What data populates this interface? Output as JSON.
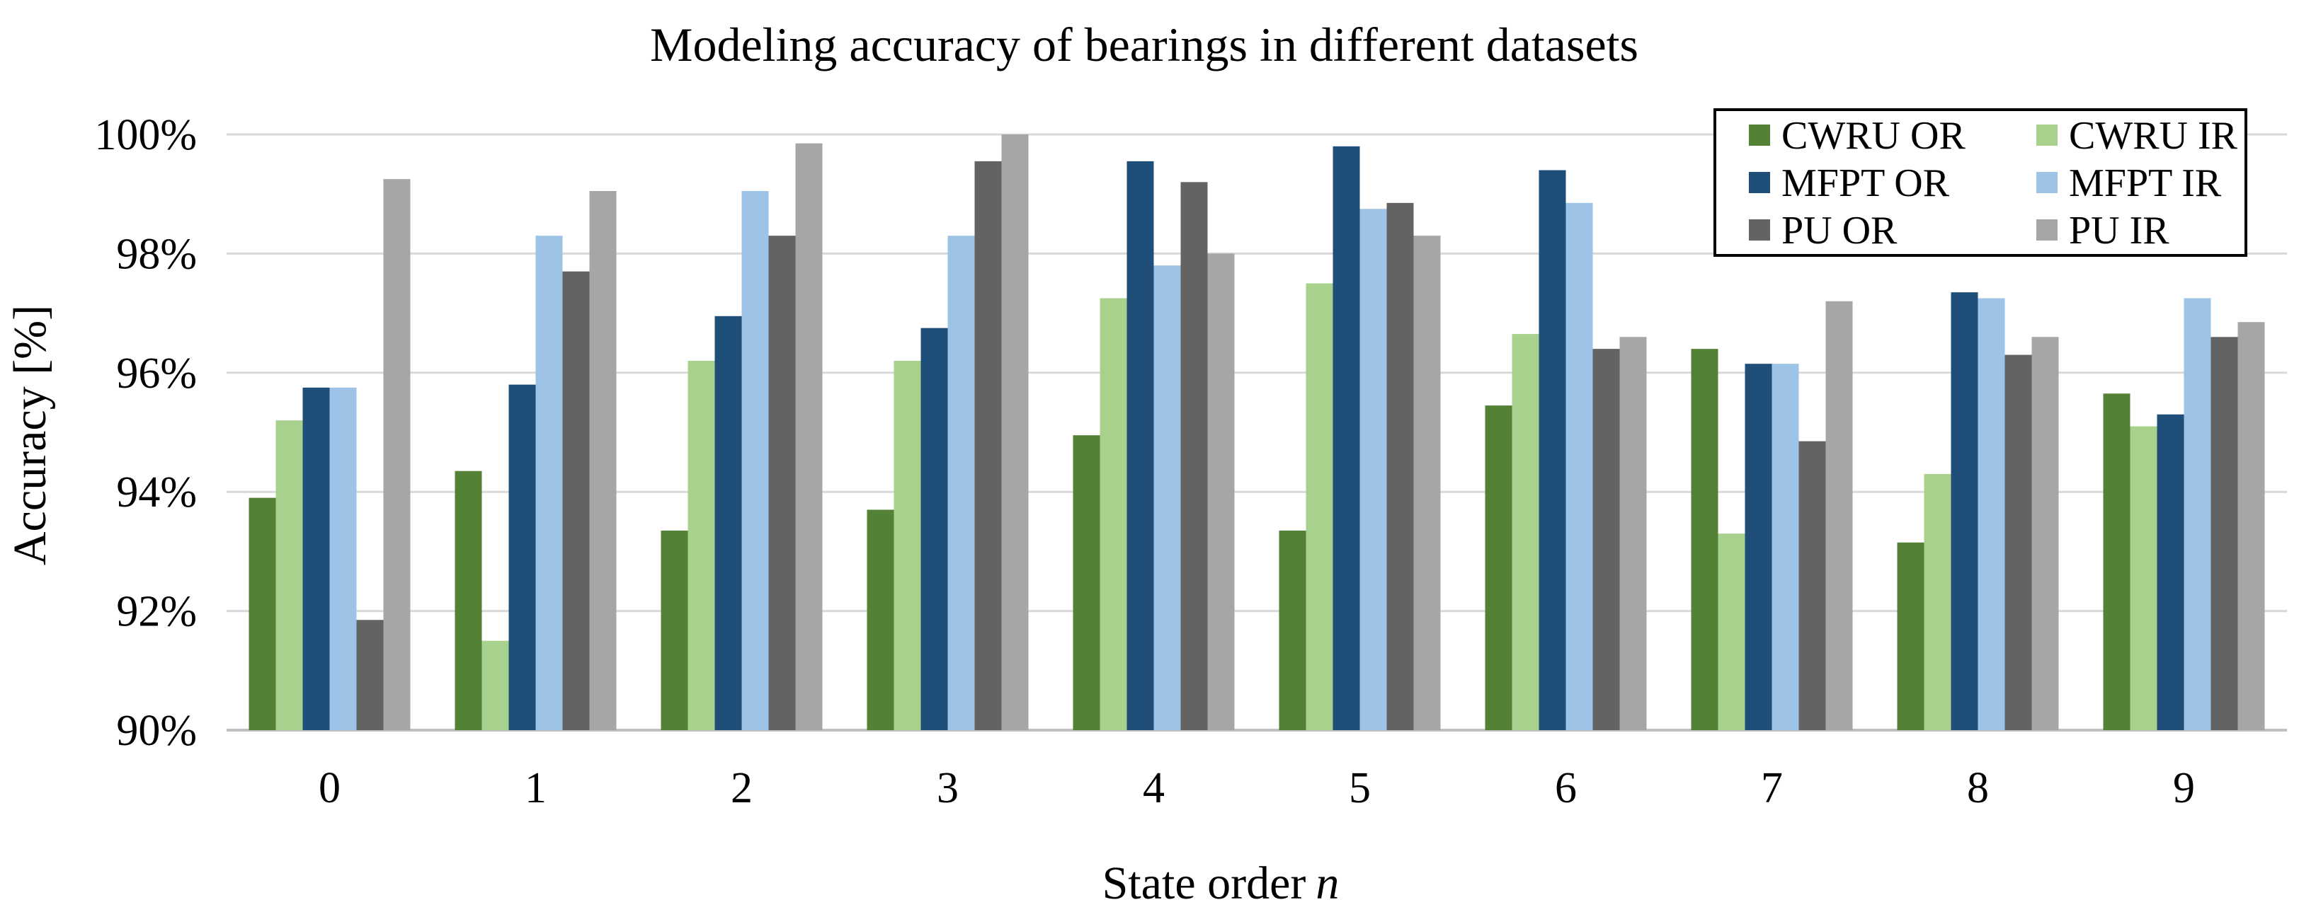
{
  "chart_data": {
    "type": "bar",
    "title": "Modeling accuracy of bearings in different datasets",
    "xlabel": "State order",
    "xlabel_var": "n",
    "ylabel": "Accuracy [%]",
    "ylim": [
      90,
      100
    ],
    "yticks": [
      90,
      92,
      94,
      96,
      98,
      100
    ],
    "ytick_labels": [
      "90%",
      "92%",
      "94%",
      "96%",
      "98%",
      "100%"
    ],
    "grid": true,
    "legend_position": "top-right",
    "categories": [
      "0",
      "1",
      "2",
      "3",
      "4",
      "5",
      "6",
      "7",
      "8",
      "9"
    ],
    "series": [
      {
        "name": "CWRU OR",
        "color": "#538135",
        "values": [
          93.9,
          94.35,
          93.35,
          93.7,
          94.95,
          93.35,
          95.45,
          96.4,
          93.15,
          95.65
        ]
      },
      {
        "name": "CWRU IR",
        "color": "#a9d18e",
        "values": [
          95.2,
          91.5,
          96.2,
          96.2,
          97.25,
          97.5,
          96.65,
          93.3,
          94.3,
          95.1
        ]
      },
      {
        "name": "MFPT OR",
        "color": "#1f4e79",
        "values": [
          95.75,
          95.8,
          96.95,
          96.75,
          99.55,
          99.8,
          99.4,
          96.15,
          97.35,
          95.3
        ]
      },
      {
        "name": "MFPT IR",
        "color": "#9dc3e6",
        "values": [
          95.75,
          98.3,
          99.05,
          98.3,
          97.8,
          98.75,
          98.85,
          96.15,
          97.25,
          97.25
        ]
      },
      {
        "name": "PU OR",
        "color": "#636363",
        "values": [
          91.85,
          97.7,
          98.3,
          99.55,
          99.2,
          98.85,
          96.4,
          94.85,
          96.3,
          96.6
        ]
      },
      {
        "name": "PU IR",
        "color": "#a6a6a6",
        "values": [
          99.25,
          99.05,
          99.85,
          100.0,
          98.0,
          98.3,
          96.6,
          97.2,
          96.6,
          96.85
        ]
      }
    ]
  }
}
